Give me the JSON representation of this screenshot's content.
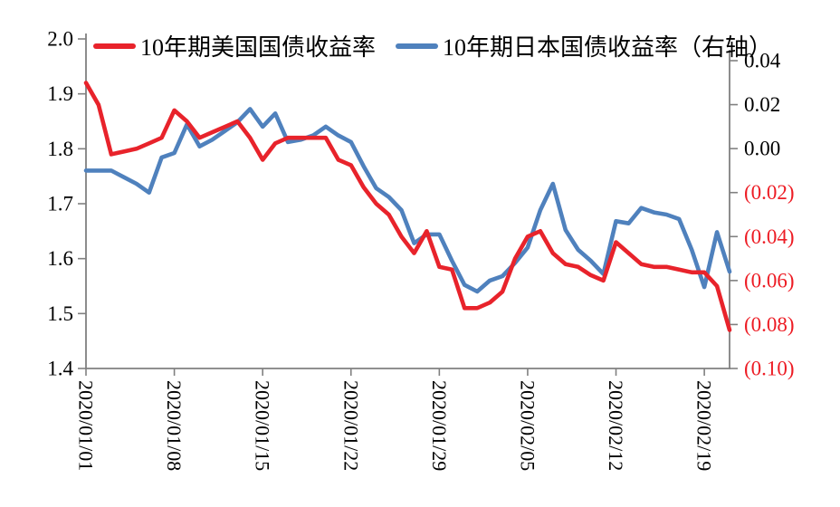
{
  "chart_data": {
    "type": "line",
    "title": "",
    "grid": false,
    "legend_position": "top",
    "x": [
      "2020/01/01",
      "2020/01/02",
      "2020/01/03",
      "2020/01/04",
      "2020/01/05",
      "2020/01/06",
      "2020/01/07",
      "2020/01/08",
      "2020/01/09",
      "2020/01/10",
      "2020/01/11",
      "2020/01/12",
      "2020/01/13",
      "2020/01/14",
      "2020/01/15",
      "2020/01/16",
      "2020/01/17",
      "2020/01/18",
      "2020/01/19",
      "2020/01/20",
      "2020/01/21",
      "2020/01/22",
      "2020/01/23",
      "2020/01/24",
      "2020/01/25",
      "2020/01/26",
      "2020/01/27",
      "2020/01/28",
      "2020/01/29",
      "2020/01/30",
      "2020/01/31",
      "2020/02/01",
      "2020/02/02",
      "2020/02/03",
      "2020/02/04",
      "2020/02/05",
      "2020/02/06",
      "2020/02/07",
      "2020/02/08",
      "2020/02/09",
      "2020/02/10",
      "2020/02/11",
      "2020/02/12",
      "2020/02/13",
      "2020/02/14",
      "2020/02/15",
      "2020/02/16",
      "2020/02/17",
      "2020/02/18",
      "2020/02/19",
      "2020/02/20",
      "2020/02/21"
    ],
    "x_tick_labels": [
      "2020/01/01",
      "2020/01/08",
      "2020/01/15",
      "2020/01/22",
      "2020/01/29",
      "2020/02/05",
      "2020/02/12",
      "2020/02/19"
    ],
    "x_tick_indices": [
      0,
      7,
      14,
      21,
      28,
      35,
      42,
      49
    ],
    "series": [
      {
        "name": "10年期美国国债收益率",
        "axis": "left",
        "color": "#e8232b",
        "values": [
          1.92,
          1.88,
          1.79,
          1.795,
          1.8,
          1.81,
          1.82,
          1.87,
          1.85,
          1.82,
          1.83,
          1.84,
          1.85,
          1.82,
          1.78,
          1.81,
          1.82,
          1.82,
          1.82,
          1.82,
          1.78,
          1.77,
          1.73,
          1.7,
          1.68,
          1.64,
          1.61,
          1.65,
          1.585,
          1.58,
          1.51,
          1.51,
          1.52,
          1.54,
          1.6,
          1.64,
          1.65,
          1.61,
          1.59,
          1.585,
          1.57,
          1.56,
          1.63,
          1.61,
          1.59,
          1.585,
          1.585,
          1.58,
          1.575,
          1.575,
          1.55,
          1.47
        ]
      },
      {
        "name": "10年期日本国债收益率（右轴）",
        "axis": "right",
        "color": "#4f81bd",
        "values": [
          -0.01,
          -0.01,
          -0.01,
          -0.013,
          -0.016,
          -0.02,
          -0.004,
          -0.002,
          0.011,
          0.001,
          0.004,
          0.008,
          0.012,
          0.018,
          0.01,
          0.016,
          0.003,
          0.004,
          0.006,
          0.01,
          0.006,
          0.003,
          -0.008,
          -0.018,
          -0.022,
          -0.028,
          -0.043,
          -0.039,
          -0.039,
          -0.051,
          -0.062,
          -0.065,
          -0.06,
          -0.058,
          -0.052,
          -0.045,
          -0.028,
          -0.016,
          -0.037,
          -0.046,
          -0.051,
          -0.057,
          -0.033,
          -0.034,
          -0.027,
          -0.029,
          -0.03,
          -0.032,
          -0.046,
          -0.063,
          -0.038,
          -0.056
        ]
      }
    ],
    "left_axis": {
      "min": 1.4,
      "max": 2.0,
      "ticks": [
        "2.0",
        "1.9",
        "1.8",
        "1.7",
        "1.6",
        "1.5",
        "1.4"
      ],
      "label_color": "#000000"
    },
    "right_axis": {
      "min": -0.1,
      "max": 0.04,
      "ticks": [
        "0.04",
        "0.02",
        "0.00",
        "(0.02)",
        "(0.04)",
        "(0.06)",
        "(0.08)",
        "(0.10)"
      ],
      "label_color": "#000000",
      "negative_color": "#ed1c24"
    },
    "axis_line_color": "#808080"
  }
}
